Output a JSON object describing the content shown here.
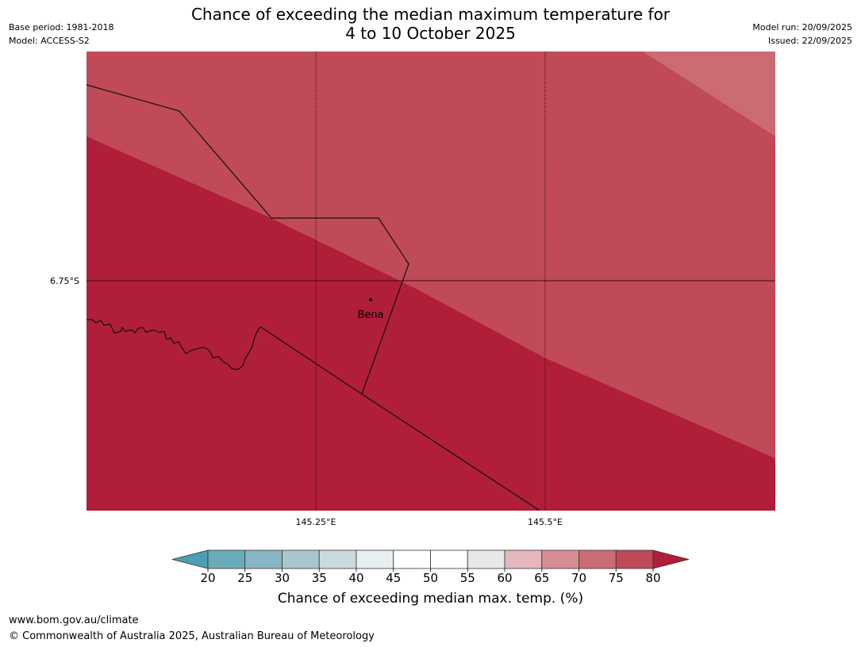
{
  "header": {
    "title_line1": "Chance of exceeding the median maximum temperature for",
    "title_line2": "4 to 10 October 2025",
    "base_period": "Base period: 1981-2018",
    "model": "Model: ACCESS-S2",
    "model_run": "Model run: 20/09/2025",
    "issued": "Issued: 22/09/2025"
  },
  "map": {
    "latitude_labels": [
      "6.75°S"
    ],
    "longitude_labels": [
      "145.25°E",
      "145.5°E"
    ],
    "place": {
      "name": "Bena"
    },
    "zones": [
      {
        "category": "80+",
        "color": "#b11e3a"
      },
      {
        "category": "75-80",
        "color": "#c04a57"
      },
      {
        "category": "70-75",
        "color": "#cb6b74"
      }
    ]
  },
  "legend": {
    "label": "Chance of exceeding median max. temp. (%)",
    "ticks": [
      "20",
      "25",
      "30",
      "35",
      "40",
      "45",
      "50",
      "55",
      "60",
      "65",
      "70",
      "75",
      "80"
    ],
    "under_color": "#4aa0b2",
    "over_color": "#b11e3a",
    "colors": [
      "#6aabba",
      "#88b5c3",
      "#a8c6cd",
      "#c9dadd",
      "#e7eff1",
      "#ffffff",
      "#ffffff",
      "#e8e8e8",
      "#e4b8bd",
      "#d78c95",
      "#cb6b74",
      "#c04a57"
    ]
  },
  "footer": {
    "url": "www.bom.gov.au/climate",
    "copyright": "© Commonwealth of Australia 2025, Australian Bureau of Meteorology"
  }
}
